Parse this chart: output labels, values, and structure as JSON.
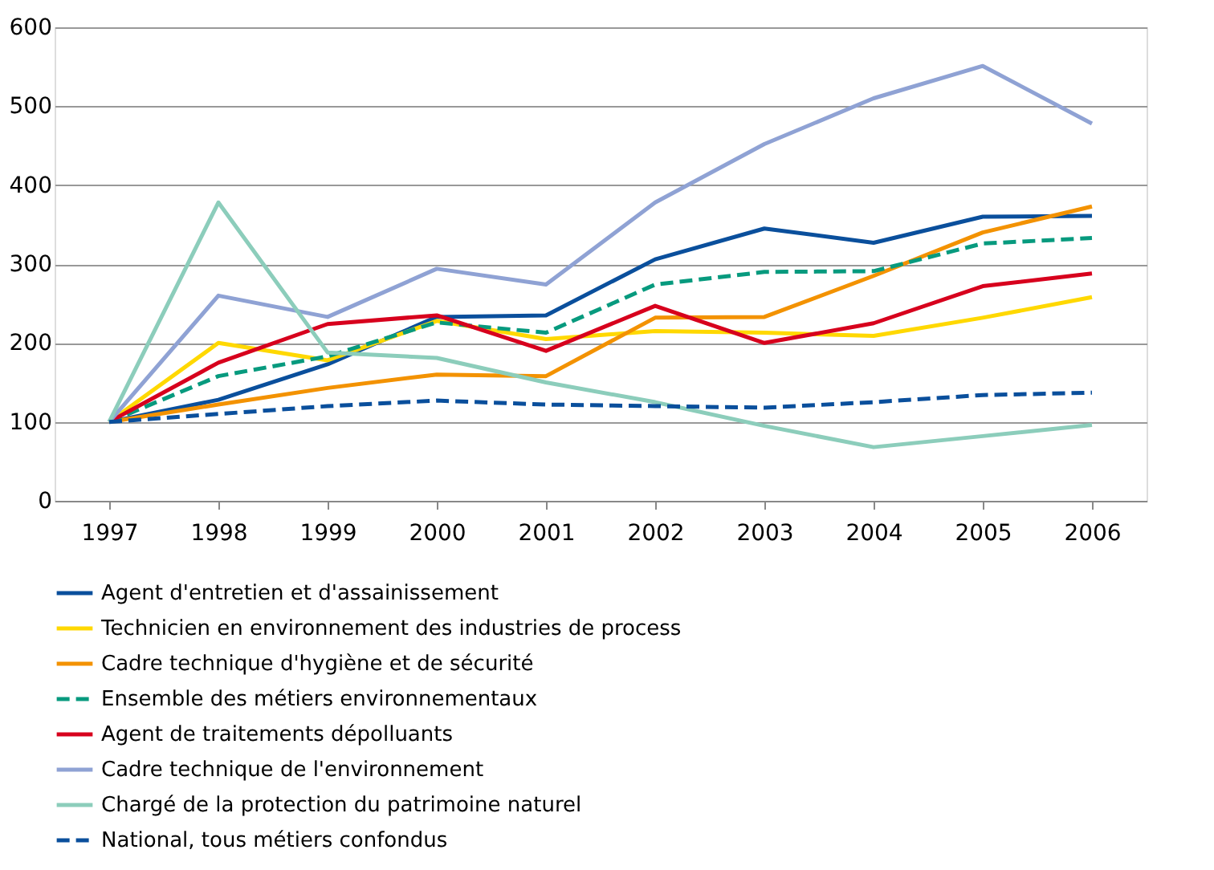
{
  "chart_data": {
    "type": "line",
    "categories": [
      "1997",
      "1998",
      "1999",
      "2000",
      "2001",
      "2002",
      "2003",
      "2004",
      "2005",
      "2006"
    ],
    "ylim": [
      0,
      600
    ],
    "yticks": [
      0,
      100,
      200,
      300,
      400,
      500,
      600
    ],
    "grid": "y",
    "legend": "bottom",
    "marker": "none",
    "series": [
      {
        "name": "Agent d'entretien et d'assainissement",
        "color": "#0a4f9c",
        "line_style": "solid",
        "values": [
          100,
          128,
          173,
          233,
          235,
          306,
          345,
          327,
          360,
          361
        ]
      },
      {
        "name": "Technicien en environnement des industries de process",
        "color": "#ffd800",
        "line_style": "solid",
        "values": [
          100,
          200,
          178,
          228,
          205,
          215,
          213,
          209,
          232,
          258
        ]
      },
      {
        "name": "Cadre technique d'hygiène et de sécurité",
        "color": "#f39200",
        "line_style": "solid",
        "values": [
          100,
          122,
          143,
          160,
          158,
          232,
          233,
          285,
          340,
          373
        ]
      },
      {
        "name": "Ensemble des métiers environnementaux",
        "color": "#079a7e",
        "line_style": "dashed",
        "values": [
          100,
          158,
          183,
          226,
          213,
          274,
          290,
          291,
          326,
          333
        ]
      },
      {
        "name": "Agent de traitements dépolluants",
        "color": "#d7001d",
        "line_style": "solid",
        "values": [
          100,
          175,
          224,
          235,
          190,
          247,
          200,
          225,
          272,
          288
        ]
      },
      {
        "name": "Cadre technique de l'environnement",
        "color": "#8fa2d4",
        "line_style": "solid",
        "values": [
          100,
          260,
          233,
          294,
          274,
          378,
          452,
          510,
          551,
          478
        ]
      },
      {
        "name": "Chargé de la protection du patrimoine naturel",
        "color": "#8ccdbb",
        "line_style": "solid",
        "values": [
          100,
          378,
          188,
          181,
          150,
          125,
          95,
          68,
          82,
          96
        ]
      },
      {
        "name": "National, tous métiers confondus",
        "color": "#0a4f9c",
        "line_style": "dashed",
        "values": [
          100,
          110,
          120,
          127,
          122,
          120,
          118,
          125,
          134,
          137
        ]
      }
    ]
  }
}
